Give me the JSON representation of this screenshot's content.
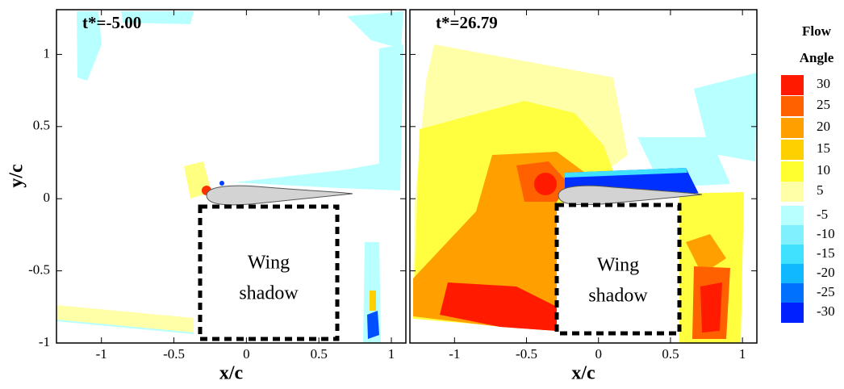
{
  "chart_data": [
    {
      "type": "contour",
      "annotation": "t*=-5.00",
      "shadow_label": [
        "Wing",
        "shadow"
      ],
      "xlabel": "x/c",
      "ylabel": "y/c",
      "xlim": [
        -1.31,
        1.1
      ],
      "ylim": [
        -1,
        1.31
      ],
      "xticks": [
        -1,
        -0.5,
        0,
        0.5,
        1
      ],
      "yticks": [
        -1,
        -0.5,
        0,
        0.5,
        1
      ]
    },
    {
      "type": "contour",
      "annotation": "t*=26.79",
      "shadow_label": [
        "Wing",
        "shadow"
      ],
      "xlabel": "x/c",
      "xlim": [
        -1.31,
        1.1
      ],
      "ylim": [
        -1,
        1.31
      ],
      "xticks": [
        -1,
        -0.5,
        0,
        0.5,
        1
      ],
      "yticks": [
        -1,
        -0.5,
        0,
        0.5,
        1
      ]
    }
  ],
  "colorbar": {
    "title": [
      "Flow",
      "Angle"
    ],
    "levels": [
      30,
      25,
      20,
      15,
      10,
      5,
      -5,
      -10,
      -15,
      -20,
      -25,
      -30
    ],
    "colors": [
      "#ff1a00",
      "#ff6000",
      "#ffa000",
      "#ffd000",
      "#ffff30",
      "#ffffa8",
      "#b8ffff",
      "#80f0ff",
      "#40e0ff",
      "#10b8ff",
      "#0070ff",
      "#0020ff"
    ]
  }
}
